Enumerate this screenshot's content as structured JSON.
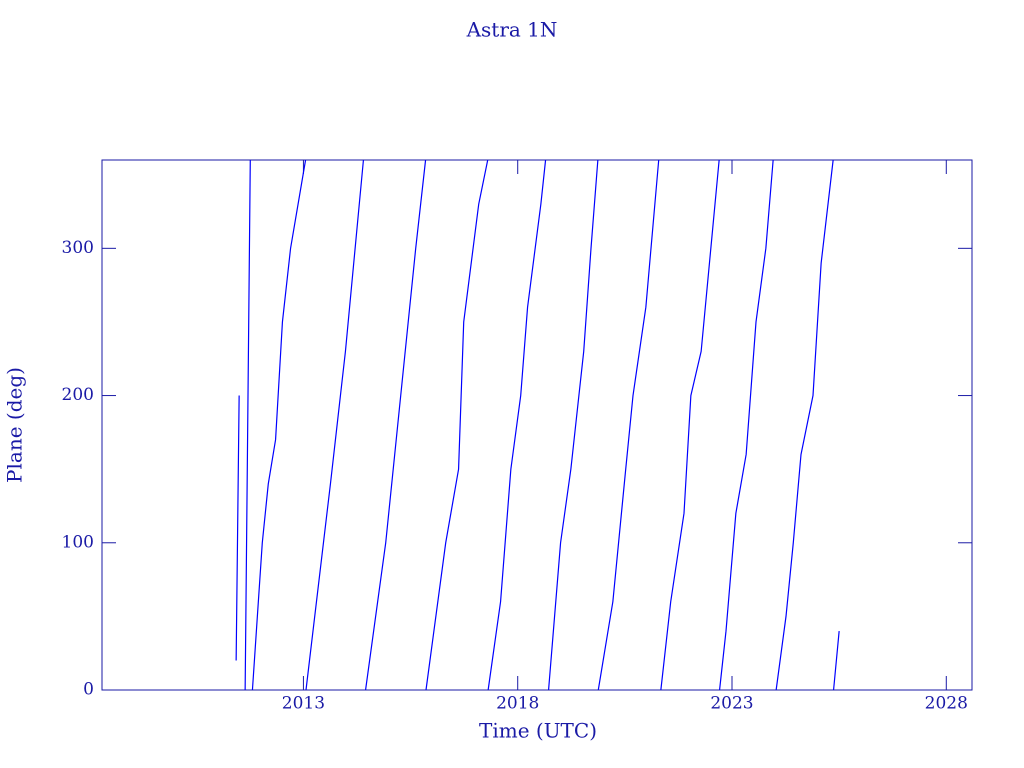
{
  "chart_data": {
    "type": "line",
    "title": "Astra 1N",
    "x_label": "Time (UTC)",
    "y_label": "Plane (deg)",
    "xlim": [
      2008.3,
      2028.6
    ],
    "ylim": [
      0,
      360
    ],
    "xticks": [
      2013,
      2018,
      2023,
      2028
    ],
    "yticks": [
      0,
      100,
      200,
      300
    ],
    "axis_color": "#1a1aa6",
    "x": [
      2011.43,
      2011.5,
      2011.57,
      2011.64,
      2011.76,
      2011.78,
      2011.81,
      2012.04,
      2012.18,
      2012.35,
      2012.51,
      2012.7,
      2013.05,
      2013.055,
      2013.06,
      2013.63,
      2013.98,
      2014.4,
      2014.42,
      2014.45,
      2014.92,
      2015.27,
      2015.62,
      2015.85,
      2015.855,
      2015.86,
      2016.32,
      2016.62,
      2016.74,
      2017.09,
      2017.3,
      2017.305,
      2017.31,
      2017.6,
      2017.84,
      2018.07,
      2018.23,
      2018.54,
      2018.65,
      2018.68,
      2018.72,
      2019.0,
      2019.24,
      2019.54,
      2019.71,
      2019.87,
      2019.875,
      2019.88,
      2020.22,
      2020.52,
      2020.69,
      2020.99,
      2021.29,
      2021.31,
      2021.34,
      2021.57,
      2021.88,
      2022.04,
      2022.28,
      2022.7,
      2022.705,
      2022.71,
      2022.86,
      2023.09,
      2023.33,
      2023.56,
      2023.79,
      2023.96,
      2024.0,
      2024.03,
      2024.26,
      2024.43,
      2024.61,
      2024.89,
      2025.08,
      2025.36,
      2025.365,
      2025.37,
      2025.5
    ],
    "series": [
      {
        "color": "#0000ff",
        "values": [
          20,
          200,
          null,
          0,
          360,
          null,
          0,
          100,
          140,
          170,
          250,
          300,
          360,
          null,
          0,
          140,
          230,
          360,
          null,
          0,
          100,
          200,
          300,
          360,
          null,
          0,
          100,
          150,
          250,
          330,
          360,
          null,
          0,
          60,
          150,
          200,
          260,
          330,
          360,
          null,
          0,
          100,
          150,
          230,
          300,
          360,
          null,
          0,
          60,
          150,
          200,
          260,
          360,
          null,
          0,
          60,
          120,
          200,
          230,
          360,
          null,
          0,
          40,
          120,
          160,
          250,
          300,
          360,
          null,
          0,
          50,
          100,
          160,
          200,
          290,
          360,
          null,
          0,
          40
        ]
      }
    ]
  }
}
